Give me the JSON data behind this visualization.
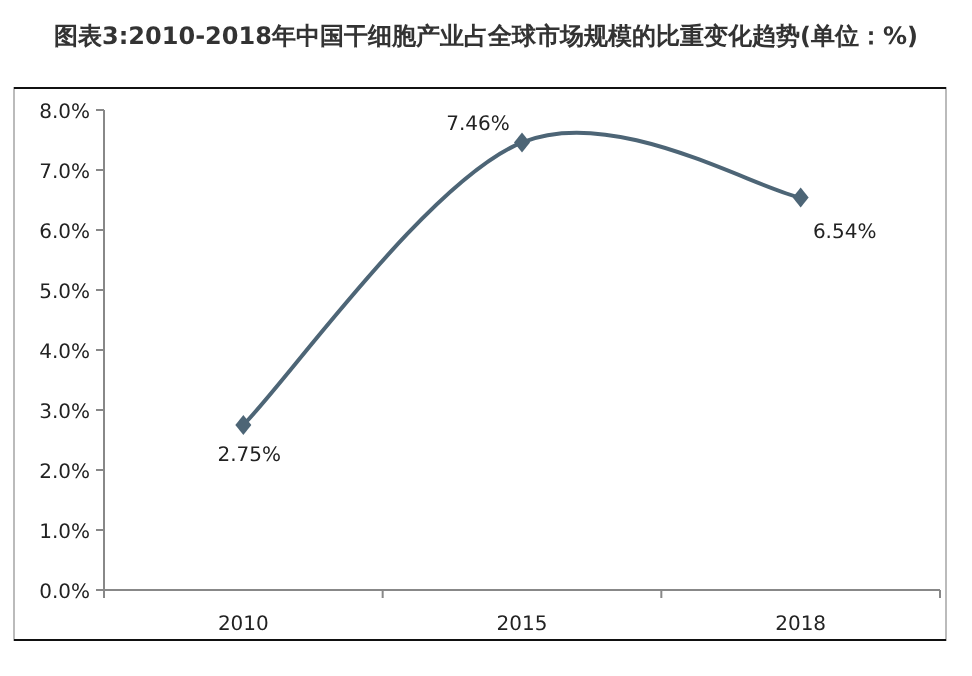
{
  "chart_data": {
    "type": "line",
    "title": "图表3:2010-2018年中国干细胞产业占全球市场规模的比重变化趋势(单位：%)",
    "categories": [
      "2010",
      "2015",
      "2018"
    ],
    "series": [
      {
        "color": "#4d6576",
        "values": [
          2.75,
          7.46,
          6.54
        ],
        "value_labels": [
          "2.75%",
          "7.46%",
          "6.54%"
        ]
      }
    ],
    "ylim": [
      0,
      8
    ],
    "yticks": [
      {
        "value": 0,
        "label": "0.0%"
      },
      {
        "value": 1,
        "label": "1.0%"
      },
      {
        "value": 2,
        "label": "2.0%"
      },
      {
        "value": 3,
        "label": "3.0%"
      },
      {
        "value": 4,
        "label": "4.0%"
      },
      {
        "value": 5,
        "label": "5.0%"
      },
      {
        "value": 6,
        "label": "6.0%"
      },
      {
        "value": 7,
        "label": "7.0%"
      },
      {
        "value": 8,
        "label": "8.0%"
      }
    ],
    "grid": false,
    "marker": "diamond",
    "line_style": "solid"
  }
}
